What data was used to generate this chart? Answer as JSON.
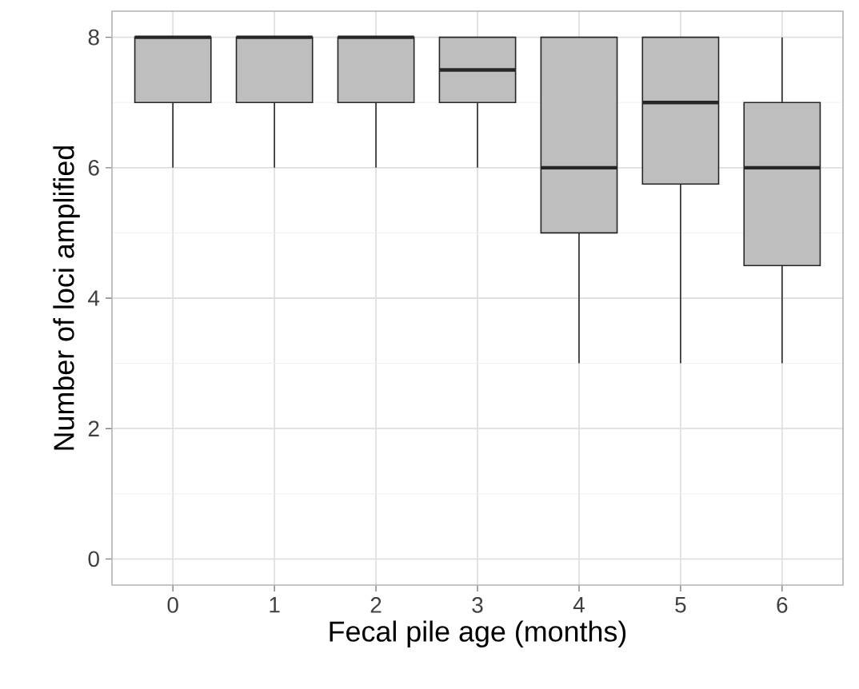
{
  "chart_data": {
    "type": "box",
    "xlabel": "Fecal pile age (months)",
    "ylabel": "Number of loci amplified",
    "categories": [
      "0",
      "1",
      "2",
      "3",
      "4",
      "5",
      "6"
    ],
    "boxes": [
      {
        "low": 6,
        "q1": 7,
        "median": 8,
        "q3": 8,
        "high": 8
      },
      {
        "low": 6,
        "q1": 7,
        "median": 8,
        "q3": 8,
        "high": 8
      },
      {
        "low": 6,
        "q1": 7,
        "median": 8,
        "q3": 8,
        "high": 8
      },
      {
        "low": 6,
        "q1": 7,
        "median": 7.5,
        "q3": 8,
        "high": 8
      },
      {
        "low": 3,
        "q1": 5,
        "median": 6,
        "q3": 8,
        "high": 8
      },
      {
        "low": 3,
        "q1": 5.75,
        "median": 7,
        "q3": 8,
        "high": 8
      },
      {
        "low": 3,
        "q1": 4.5,
        "median": 6,
        "q3": 7,
        "high": 8
      }
    ],
    "color": "#bebebe",
    "ylim": [
      -0.4,
      8.4
    ],
    "yticks": [
      0,
      2,
      4,
      6,
      8
    ],
    "grid": true
  }
}
